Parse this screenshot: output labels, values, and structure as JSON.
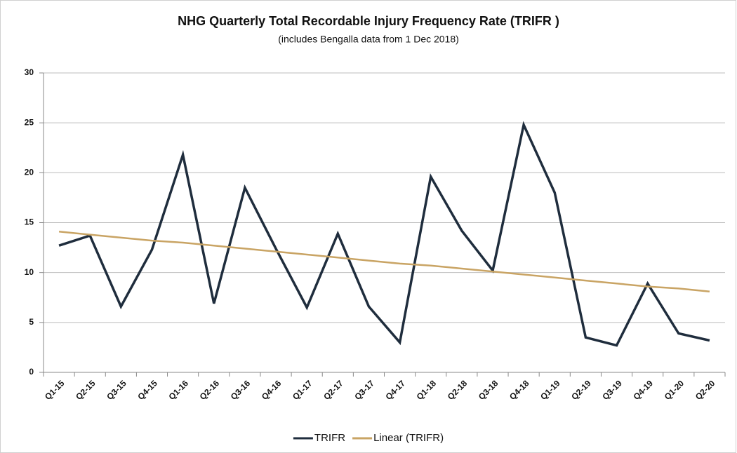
{
  "chart_data": {
    "type": "line",
    "title": "NHG Quarterly Total Recordable Injury Frequency Rate (TRIFR )",
    "subtitle": "(includes Bengalla data from 1 Dec 2018)",
    "categories": [
      "Q1-15",
      "Q2-15",
      "Q3-15",
      "Q4-15",
      "Q1-16",
      "Q2-16",
      "Q3-16",
      "Q4-16",
      "Q1-17",
      "Q2-17",
      "Q3-17",
      "Q4-17",
      "Q1-18",
      "Q2-18",
      "Q3-18",
      "Q4-18",
      "Q1-19",
      "Q2-19",
      "Q3-19",
      "Q4-19",
      "Q1-20",
      "Q2-20"
    ],
    "series": [
      {
        "name": "TRIFR",
        "color": "#1f2d3d",
        "values": [
          12.7,
          13.7,
          6.6,
          12.3,
          21.8,
          6.9,
          18.5,
          12.4,
          6.5,
          13.9,
          6.6,
          3.0,
          19.6,
          14.2,
          10.2,
          24.8,
          18.0,
          3.5,
          2.7,
          8.9,
          3.9,
          3.2
        ]
      },
      {
        "name": "Linear (TRIFR)",
        "color": "#c9a464",
        "values": [
          14.1,
          13.8,
          13.5,
          13.2,
          13.0,
          12.7,
          12.4,
          12.1,
          11.8,
          11.5,
          11.2,
          10.9,
          10.7,
          10.4,
          10.1,
          9.8,
          9.5,
          9.2,
          8.9,
          8.6,
          8.4,
          8.1
        ]
      }
    ],
    "ylim": [
      0,
      30
    ],
    "yticks": [
      0,
      5,
      10,
      15,
      20,
      25,
      30
    ],
    "grid": true,
    "legend": "bottom"
  }
}
